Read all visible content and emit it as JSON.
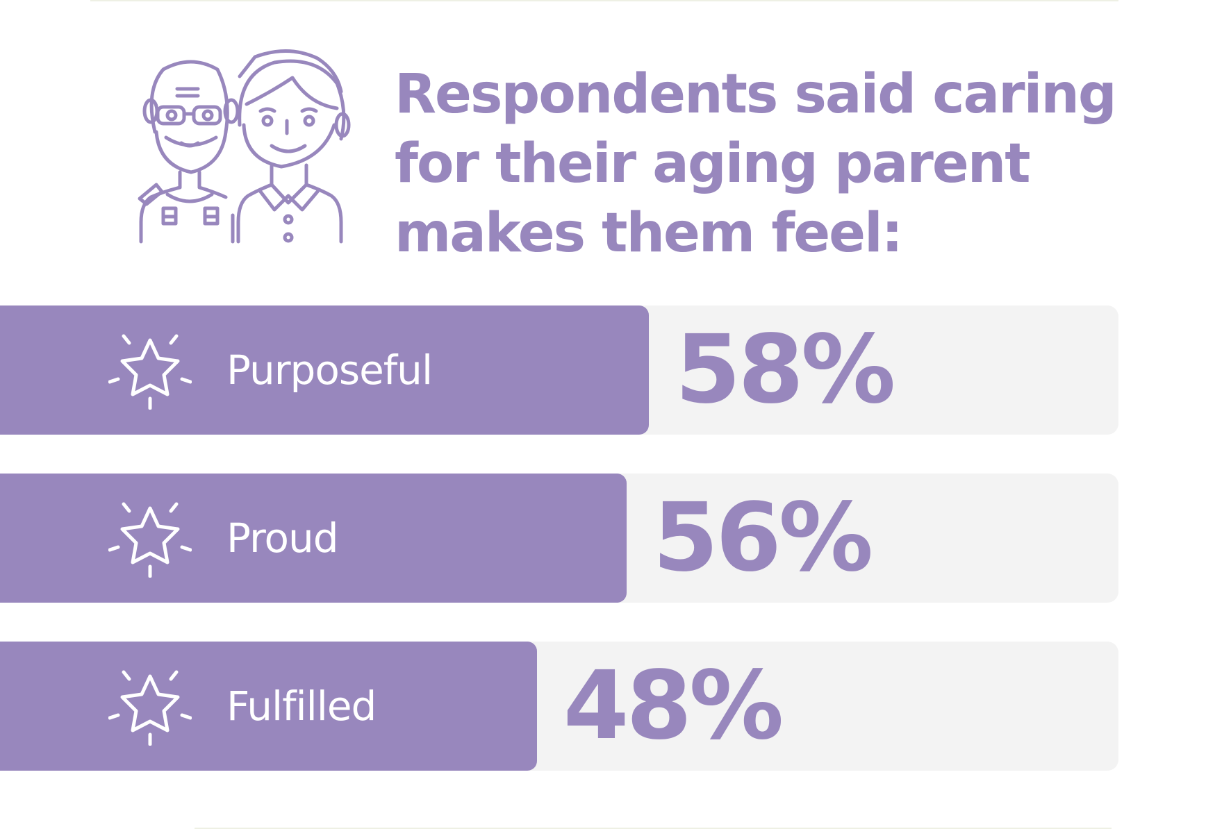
{
  "header": {
    "title_lines": [
      "Respondents said caring",
      "for their aging parent",
      "makes them feel:"
    ]
  },
  "illustration": {
    "icon": "elderly-parent-and-adult-child-icon",
    "color": "#9887bd"
  },
  "chart_data": {
    "type": "bar",
    "orientation": "horizontal",
    "title": "Respondents said caring for their aging parent makes them feel:",
    "categories": [
      "Purposeful",
      "Proud",
      "Fulfilled"
    ],
    "values": [
      58,
      56,
      48
    ],
    "value_labels": [
      "58%",
      "56%",
      "48%"
    ],
    "unit": "%",
    "xlim": [
      0,
      100
    ],
    "category_icon": "sparkle-star-icon",
    "colors": {
      "bar": "#9887bd",
      "track": "#f3f3f3",
      "label": "#ffffff",
      "value": "#9887bd"
    }
  }
}
